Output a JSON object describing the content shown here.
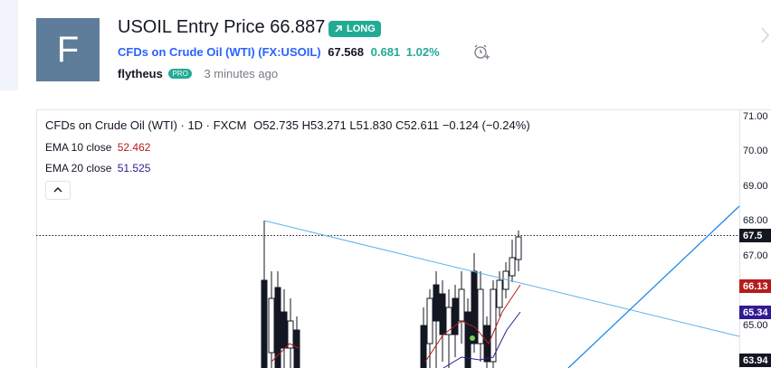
{
  "avatar_letter": "F",
  "header": {
    "title": "USOIL Entry Price 66.887",
    "badge": "LONG",
    "symbol_name": "CFDs on Crude Oil (WTI)",
    "symbol_code": "(FX:USOIL)",
    "price": "67.568",
    "change": "0.681",
    "change_pct": "1.02%",
    "author": "flytheus",
    "author_badge": "PRO",
    "time": "3 minutes ago"
  },
  "chart": {
    "legend": {
      "symbol": "CFDs on Crude Oil (WTI) · 1D · FXCM",
      "open": "O52.735",
      "high": "H53.271",
      "low": "L51.830",
      "close": "C52.611",
      "change": "−0.124 (−0.24%)"
    },
    "indicators": [
      {
        "name": "EMA 10 close",
        "value": "52.462"
      },
      {
        "name": "EMA 20 close",
        "value": "51.525"
      }
    ],
    "price_axis": [
      "71.00",
      "70.00",
      "69.00",
      "68.00",
      "67.00",
      "65.00"
    ],
    "price_labels": [
      "67.5",
      "66.13",
      "65.34",
      "63.94"
    ]
  }
}
